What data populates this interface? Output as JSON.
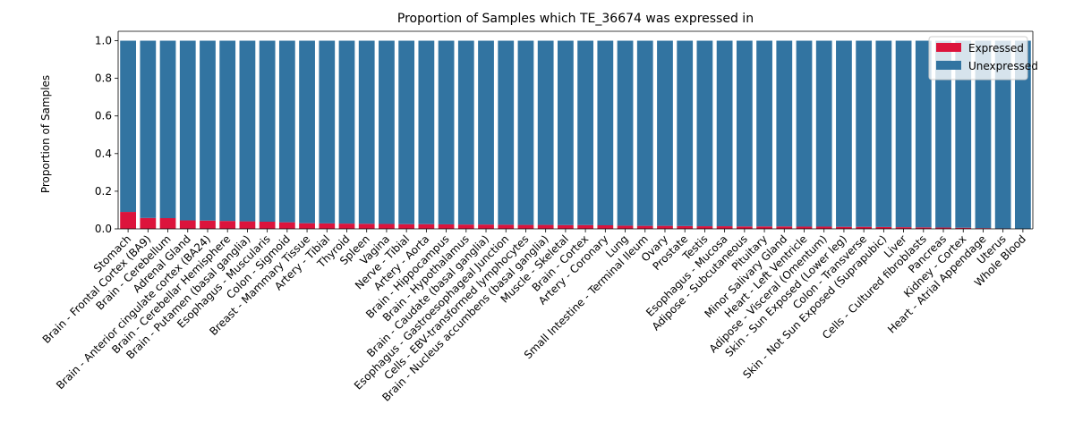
{
  "chart_data": {
    "type": "bar",
    "stacked": true,
    "title": "Proportion of Samples which TE_36674 was expressed in",
    "ylabel": "Proportion of Samples",
    "xlabel": "",
    "ylim": [
      0,
      1.05
    ],
    "yticks": [
      "0.0",
      "0.2",
      "0.4",
      "0.6",
      "0.8",
      "1.0"
    ],
    "ytick_values": [
      0,
      0.2,
      0.4,
      0.6,
      0.8,
      1.0
    ],
    "legend_position": "top-right",
    "grid": false,
    "categories": [
      "Stomach",
      "Brain - Frontal Cortex (BA9)",
      "Brain - Cerebellum",
      "Adrenal Gland",
      "Brain - Anterior cingulate cortex (BA24)",
      "Brain - Cerebellar Hemisphere",
      "Brain - Putamen (basal ganglia)",
      "Esophagus - Muscularis",
      "Colon - Sigmoid",
      "Breast - Mammary Tissue",
      "Artery - Tibial",
      "Thyroid",
      "Spleen",
      "Vagina",
      "Nerve - Tibial",
      "Artery - Aorta",
      "Brain - Hippocampus",
      "Brain - Hypothalamus",
      "Brain - Caudate (basal ganglia)",
      "Esophagus - Gastroesophageal Junction",
      "Cells - EBV-transformed lymphocytes",
      "Brain - Nucleus accumbens (basal ganglia)",
      "Muscle - Skeletal",
      "Brain - Cortex",
      "Artery - Coronary",
      "Lung",
      "Small Intestine - Terminal Ileum",
      "Ovary",
      "Prostate",
      "Testis",
      "Esophagus - Mucosa",
      "Adipose - Subcutaneous",
      "Pituitary",
      "Minor Salivary Gland",
      "Heart - Left Ventricle",
      "Adipose - Visceral (Omentum)",
      "Skin - Sun Exposed (Lower leg)",
      "Colon - Transverse",
      "Skin - Not Sun Exposed (Suprapubic)",
      "Liver",
      "Cells - Cultured fibroblasts",
      "Pancreas",
      "Kidney - Cortex",
      "Heart - Atrial Appendage",
      "Uterus",
      "Whole Blood"
    ],
    "series": [
      {
        "name": "Expressed",
        "color": "#dc143c",
        "values": [
          0.09,
          0.058,
          0.057,
          0.045,
          0.044,
          0.042,
          0.04,
          0.038,
          0.035,
          0.03,
          0.029,
          0.028,
          0.027,
          0.026,
          0.025,
          0.025,
          0.024,
          0.023,
          0.023,
          0.022,
          0.021,
          0.021,
          0.02,
          0.02,
          0.019,
          0.017,
          0.016,
          0.016,
          0.015,
          0.014,
          0.014,
          0.013,
          0.013,
          0.013,
          0.012,
          0.012,
          0.011,
          0.011,
          0.01,
          0.009,
          0.008,
          0.007,
          0.006,
          0.004,
          0.002,
          0.0
        ]
      },
      {
        "name": "Unexpressed",
        "color": "#3274a1",
        "values": [
          0.91,
          0.942,
          0.943,
          0.955,
          0.956,
          0.958,
          0.96,
          0.962,
          0.965,
          0.97,
          0.971,
          0.972,
          0.973,
          0.974,
          0.975,
          0.975,
          0.976,
          0.977,
          0.977,
          0.978,
          0.979,
          0.979,
          0.98,
          0.98,
          0.981,
          0.983,
          0.984,
          0.984,
          0.985,
          0.986,
          0.986,
          0.987,
          0.987,
          0.987,
          0.988,
          0.988,
          0.989,
          0.989,
          0.99,
          0.991,
          0.992,
          0.993,
          0.994,
          0.996,
          0.998,
          1.0
        ]
      }
    ]
  }
}
